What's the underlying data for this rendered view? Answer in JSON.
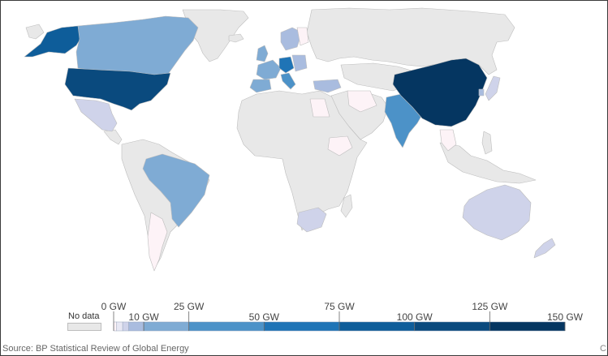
{
  "legend": {
    "no_data_label": "No data",
    "unit": "GW",
    "upper_ticks": [
      "0 GW",
      "25 GW",
      "75 GW",
      "125 GW"
    ],
    "lower_ticks": [
      "10 GW",
      "50 GW",
      "100 GW",
      "150 GW"
    ],
    "bins": [
      {
        "from": 0,
        "to": 1,
        "color": "#fdf3f7"
      },
      {
        "from": 1,
        "to": 3,
        "color": "#e8e8f4"
      },
      {
        "from": 3,
        "to": 5,
        "color": "#cfd3ea"
      },
      {
        "from": 5,
        "to": 10,
        "color": "#a9bcdf"
      },
      {
        "from": 10,
        "to": 25,
        "color": "#7fabd4"
      },
      {
        "from": 25,
        "to": 50,
        "color": "#4c92c8"
      },
      {
        "from": 50,
        "to": 75,
        "color": "#1f74b6"
      },
      {
        "from": 75,
        "to": 100,
        "color": "#0e5d9a"
      },
      {
        "from": 100,
        "to": 125,
        "color": "#0a4a7e"
      },
      {
        "from": 125,
        "to": 150,
        "color": "#053661"
      }
    ]
  },
  "colors": {
    "no_data": "#e8e8e8",
    "border": "#bdbdbd"
  },
  "source": "Source: BP Statistical Review of Global Energy",
  "corner_mark": "C"
}
